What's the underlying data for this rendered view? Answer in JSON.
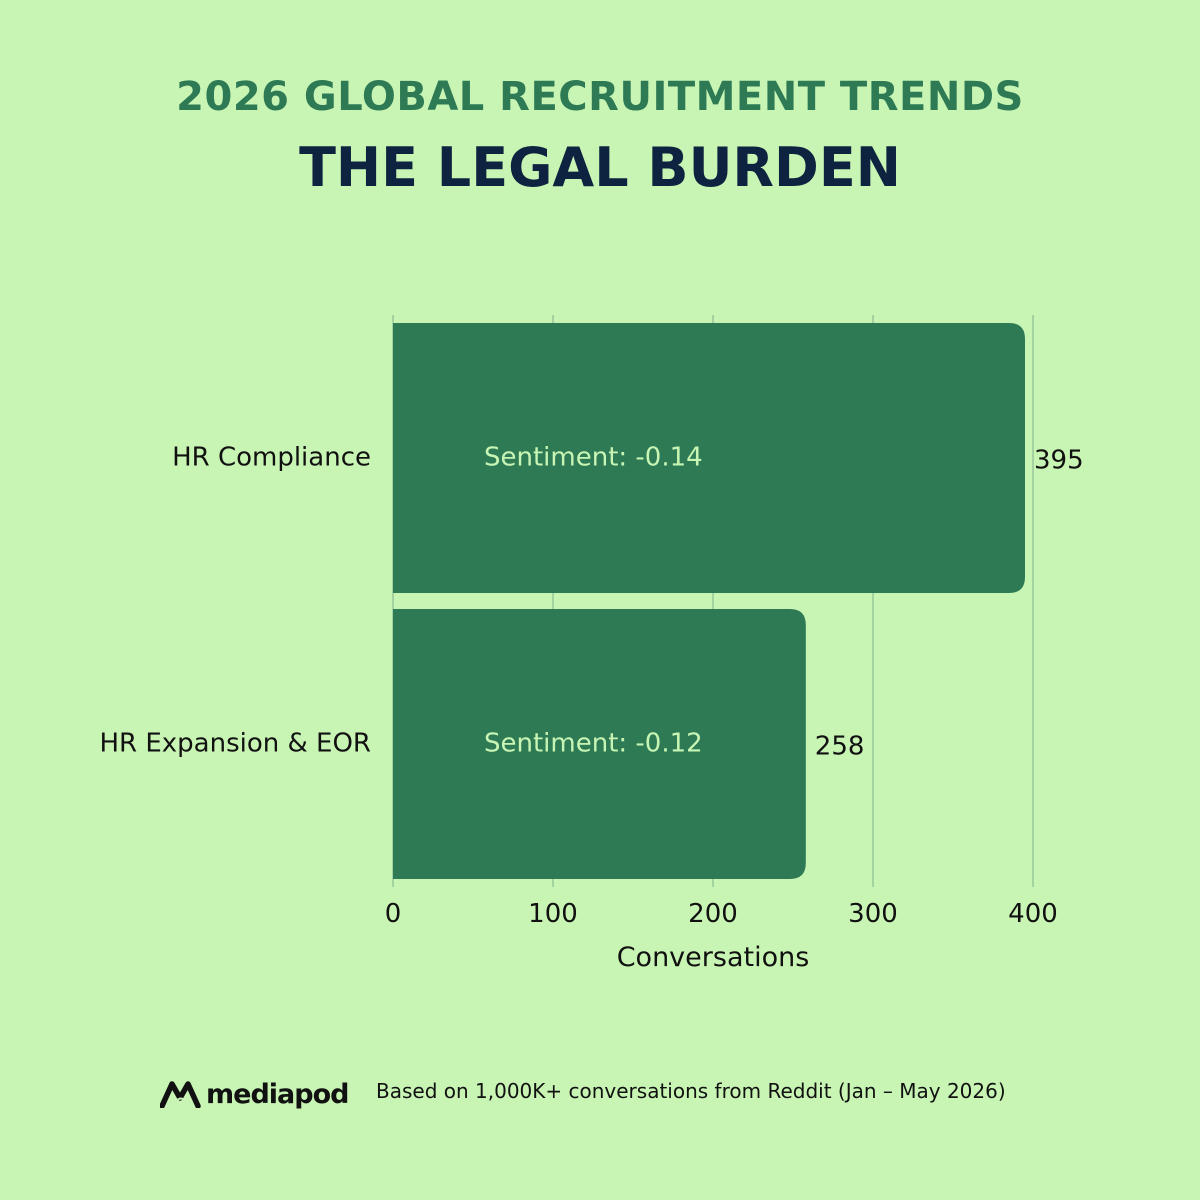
{
  "header": {
    "supertitle": "2026 GLOBAL RECRUITMENT TRENDS",
    "title": "THE LEGAL BURDEN"
  },
  "colors": {
    "background": "#c8f5b4",
    "bar": "#2d7a55",
    "bar_text": "#c8f5b4",
    "supertitle": "#2d7a55",
    "title": "#0d2340",
    "grid": "#7fb08e"
  },
  "chart_data": {
    "type": "bar",
    "orientation": "horizontal",
    "categories": [
      "HR Compliance",
      "HR Expansion & EOR"
    ],
    "values": [
      395,
      258
    ],
    "bar_labels": [
      "Sentiment: -0.14",
      "Sentiment: -0.12"
    ],
    "value_labels": [
      "395",
      "258"
    ],
    "xlabel": "Conversations",
    "ylabel": "",
    "xlim": [
      0,
      400
    ],
    "xticks": [
      0,
      100,
      200,
      300,
      400
    ],
    "grid": true
  },
  "footer": {
    "brand": "mediapod",
    "logo_icon": "mediapod-logo-icon",
    "source": "Based on 1,000K+ conversations from Reddit (Jan – May 2026)"
  }
}
